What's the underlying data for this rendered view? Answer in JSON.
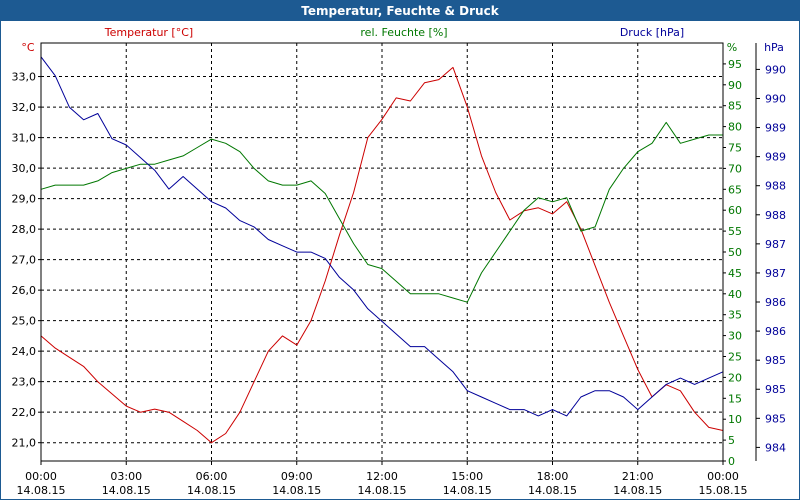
{
  "window": {
    "title": "Temperatur, Feuchte & Druck"
  },
  "colors": {
    "temperature": "#cc0000",
    "humidity": "#007700",
    "pressure": "#000099",
    "titlebar": "#1d5a92",
    "grid": "#000000",
    "tick_text": "#000000"
  },
  "chart_data": {
    "type": "line",
    "title": "Temperatur, Feuchte & Druck",
    "grid": true,
    "x_ticks": [
      {
        "time": "00:00",
        "date": "14.08.15"
      },
      {
        "time": "03:00",
        "date": "14.08.15"
      },
      {
        "time": "06:00",
        "date": "14.08.15"
      },
      {
        "time": "09:00",
        "date": "14.08.15"
      },
      {
        "time": "12:00",
        "date": "14.08.15"
      },
      {
        "time": "15:00",
        "date": "14.08.15"
      },
      {
        "time": "18:00",
        "date": "14.08.15"
      },
      {
        "time": "21:00",
        "date": "14.08.15"
      },
      {
        "time": "00:00",
        "date": "15.08.15"
      }
    ],
    "x_range_hours": [
      0,
      24
    ],
    "axes": {
      "temperature": {
        "label": "Temperatur [°C]",
        "unit": "°C",
        "range": [
          20.4,
          34.1
        ],
        "ticks": [
          "21,0",
          "22,0",
          "23,0",
          "24,0",
          "25,0",
          "26,0",
          "27,0",
          "28,0",
          "29,0",
          "30,0",
          "31,0",
          "32,0",
          "33,0"
        ]
      },
      "humidity": {
        "label": "rel. Feuchte [%]",
        "unit": "%",
        "range": [
          0,
          100
        ],
        "ticks": [
          "0",
          "5",
          "10",
          "15",
          "20",
          "25",
          "30",
          "35",
          "40",
          "45",
          "50",
          "55",
          "60",
          "65",
          "70",
          "75",
          "80",
          "85",
          "90",
          "95"
        ]
      },
      "pressure": {
        "label": "Druck [hPa]",
        "unit": "hPa",
        "ticks": [
          "984",
          "985",
          "985",
          "985",
          "986",
          "986",
          "987",
          "987",
          "988",
          "988",
          "989",
          "989",
          "990",
          "990"
        ]
      }
    },
    "series": [
      {
        "name": "Temperatur [°C]",
        "axis": "temperature",
        "x": [
          0,
          0.5,
          1,
          1.5,
          2,
          2.5,
          3,
          3.5,
          4,
          4.5,
          5,
          5.5,
          6,
          6.5,
          7,
          7.5,
          8,
          8.5,
          9,
          9.5,
          10,
          10.5,
          11,
          11.5,
          12,
          12.5,
          13,
          13.5,
          14,
          14.5,
          15,
          15.5,
          16,
          16.5,
          17,
          17.5,
          18,
          18.5,
          19,
          19.5,
          20,
          20.5,
          21,
          21.5,
          22,
          22.5,
          23,
          23.5,
          24
        ],
        "values": [
          24.5,
          24.1,
          23.8,
          23.5,
          23.0,
          22.6,
          22.2,
          22.0,
          22.1,
          22.0,
          21.7,
          21.4,
          21.0,
          21.3,
          22.0,
          23.0,
          24.0,
          24.5,
          24.2,
          25.0,
          26.3,
          27.8,
          29.2,
          31.0,
          31.6,
          32.3,
          32.2,
          32.8,
          32.9,
          33.3,
          32.0,
          30.4,
          29.2,
          28.3,
          28.6,
          28.7,
          28.5,
          28.9,
          28.0,
          26.8,
          25.6,
          24.5,
          23.4,
          22.5,
          22.9,
          22.7,
          22.0,
          21.5,
          21.4
        ]
      },
      {
        "name": "rel. Feuchte [%]",
        "axis": "humidity",
        "x": [
          0,
          0.5,
          1,
          1.5,
          2,
          2.5,
          3,
          3.5,
          4,
          4.5,
          5,
          5.5,
          6,
          6.5,
          7,
          7.5,
          8,
          8.5,
          9,
          9.5,
          10,
          10.5,
          11,
          11.5,
          12,
          12.5,
          13,
          13.5,
          14,
          14.5,
          15,
          15.5,
          16,
          16.5,
          17,
          17.5,
          18,
          18.5,
          19,
          19.5,
          20,
          20.5,
          21,
          21.5,
          22,
          22.5,
          23,
          23.5,
          24
        ],
        "values": [
          65,
          66,
          66,
          66,
          67,
          69,
          70,
          71,
          71,
          72,
          73,
          75,
          77,
          76,
          74,
          70,
          67,
          66,
          66,
          67,
          64,
          58,
          52,
          47,
          46,
          43,
          40,
          40,
          40,
          39,
          38,
          45,
          50,
          55,
          60,
          63,
          62,
          63,
          55,
          56,
          65,
          70,
          74,
          76,
          81,
          76,
          77,
          78,
          78
        ]
      },
      {
        "name": "Druck [hPa]",
        "axis": "pressure",
        "x": [
          0,
          0.5,
          1,
          1.5,
          2,
          2.5,
          3,
          3.5,
          4,
          4.5,
          5,
          5.5,
          6,
          6.5,
          7,
          7.5,
          8,
          8.5,
          9,
          9.5,
          10,
          10.5,
          11,
          11.5,
          12,
          12.5,
          13,
          13.5,
          14,
          14.5,
          15,
          15.5,
          16,
          16.5,
          17,
          17.5,
          18,
          18.5,
          19,
          19.5,
          20,
          20.5,
          21,
          21.5,
          22,
          22.5,
          23,
          23.5,
          24
        ],
        "values": [
          990.2,
          989.9,
          989.4,
          989.2,
          989.3,
          988.9,
          988.8,
          988.6,
          988.4,
          988.1,
          988.3,
          988.1,
          987.9,
          987.8,
          987.6,
          987.5,
          987.3,
          987.2,
          987.1,
          987.1,
          987.0,
          986.7,
          986.5,
          986.2,
          986.0,
          985.8,
          985.6,
          985.6,
          985.4,
          985.2,
          984.9,
          984.8,
          984.7,
          984.6,
          984.6,
          984.5,
          984.6,
          984.5,
          984.8,
          984.9,
          984.9,
          984.8,
          984.6,
          984.8,
          985.0,
          985.1,
          985.0,
          985.1,
          985.2
        ]
      }
    ]
  }
}
